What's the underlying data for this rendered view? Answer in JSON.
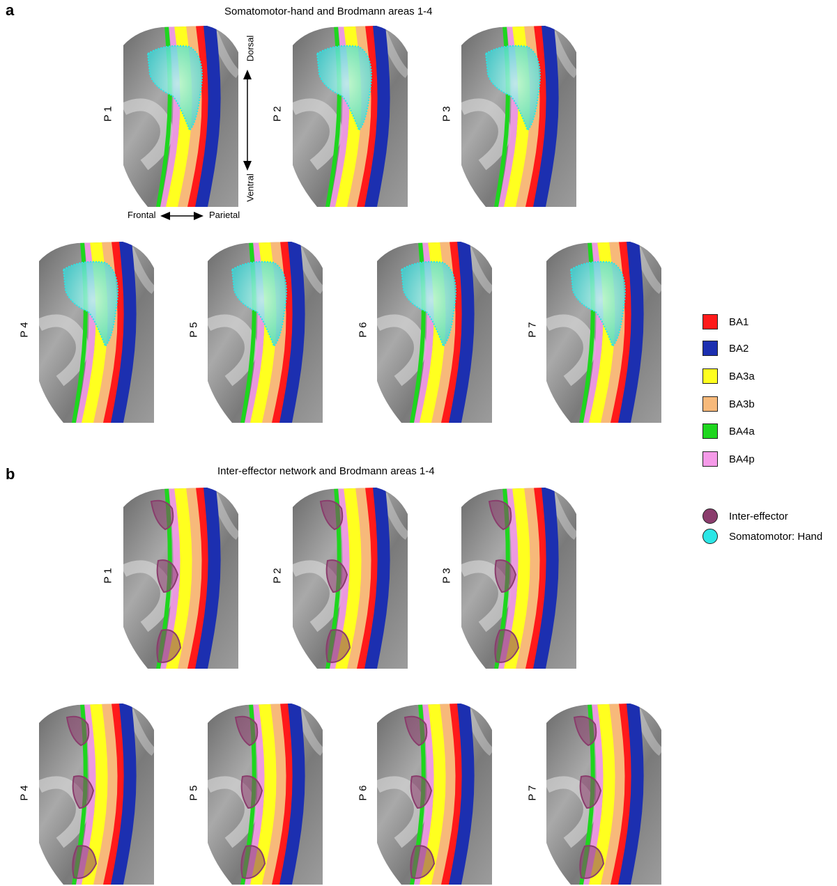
{
  "panel_a": {
    "letter": "a",
    "title": "Somatomotor-hand and Brodmann areas 1-4",
    "participants": [
      "P 1",
      "P 2",
      "P 3",
      "P 4",
      "P 5",
      "P 6",
      "P 7"
    ]
  },
  "panel_b": {
    "letter": "b",
    "title": "Inter-effector network and Brodmann areas 1-4",
    "participants": [
      "P 1",
      "P 2",
      "P 3",
      "P 4",
      "P 5",
      "P 6",
      "P 7"
    ]
  },
  "orientation": {
    "dorsal": "Dorsal",
    "ventral": "Ventral",
    "frontal": "Frontal",
    "parietal": "Parietal"
  },
  "legend": {
    "areas": [
      {
        "label": "BA1",
        "color": "#ff1a1a"
      },
      {
        "label": "BA2",
        "color": "#1c2fb0"
      },
      {
        "label": "BA3a",
        "color": "#ffff1f"
      },
      {
        "label": "BA3b",
        "color": "#f7b97a"
      },
      {
        "label": "BA4a",
        "color": "#1ed61e"
      },
      {
        "label": "BA4p",
        "color": "#f59ae8"
      }
    ],
    "networks": [
      {
        "label": "Inter-effector",
        "color": "#8a3c6c"
      },
      {
        "label": "Somatomotor: Hand",
        "color": "#2be6e6"
      }
    ]
  }
}
